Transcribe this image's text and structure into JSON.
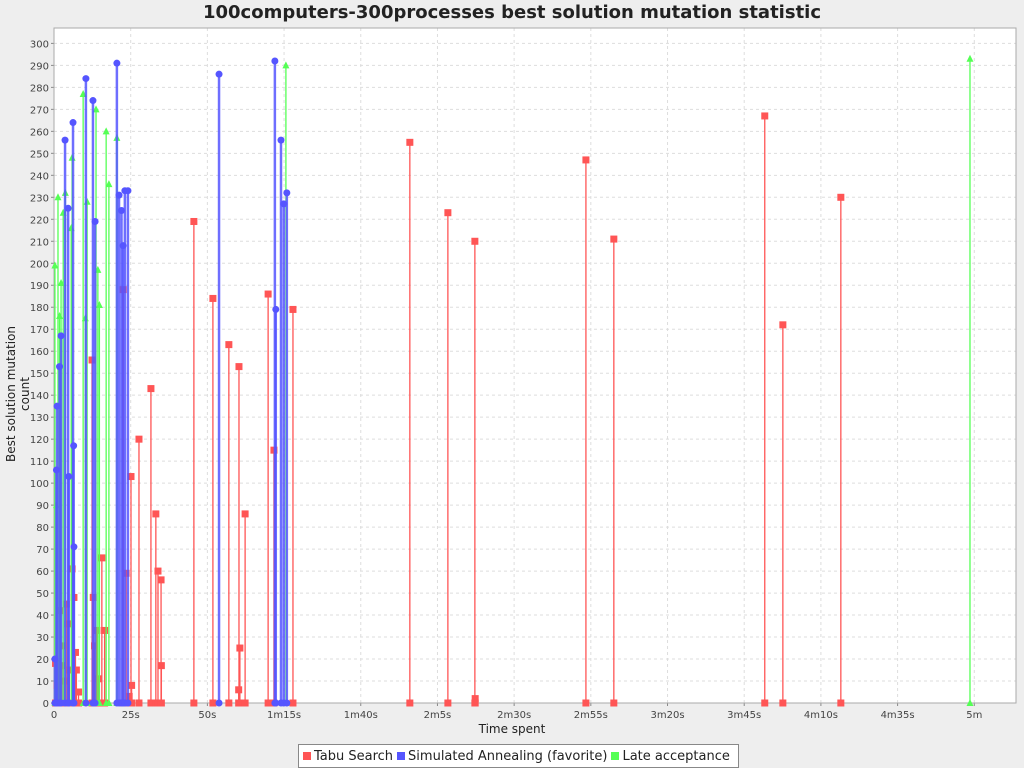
{
  "chart_data": {
    "type": "line",
    "title": "100computers-300processes best solution mutation statistic",
    "xlabel": "Time spent",
    "ylabel": "Best solution mutation count",
    "xlim": [
      0,
      313.6
    ],
    "ylim": [
      0,
      307
    ],
    "x_ticks": [
      {
        "v": 0,
        "label": "0"
      },
      {
        "v": 25,
        "label": "25s"
      },
      {
        "v": 50,
        "label": "50s"
      },
      {
        "v": 75,
        "label": "1m15s"
      },
      {
        "v": 100,
        "label": "1m40s"
      },
      {
        "v": 125,
        "label": "2m5s"
      },
      {
        "v": 150,
        "label": "2m30s"
      },
      {
        "v": 175,
        "label": "2m55s"
      },
      {
        "v": 200,
        "label": "3m20s"
      },
      {
        "v": 225,
        "label": "3m45s"
      },
      {
        "v": 250,
        "label": "4m10s"
      },
      {
        "v": 275,
        "label": "4m35s"
      },
      {
        "v": 300,
        "label": "5m"
      }
    ],
    "y_tick_step": 10,
    "grid": true,
    "legend": "bottom",
    "series": [
      {
        "name": "Tabu Search",
        "color": "#ff5555",
        "marker": "square",
        "points": [
          [
            0.5,
            18
          ],
          [
            1,
            8
          ],
          [
            1.5,
            14
          ],
          [
            2,
            42
          ],
          [
            2.5,
            17
          ],
          [
            3,
            26
          ],
          [
            3.5,
            10
          ],
          [
            4,
            45
          ],
          [
            4.5,
            36
          ],
          [
            5,
            15
          ],
          [
            5.9,
            61
          ],
          [
            6.5,
            48
          ],
          [
            7,
            23
          ],
          [
            7.3,
            15
          ],
          [
            8,
            5
          ],
          [
            12.4,
            156
          ],
          [
            12.8,
            48
          ],
          [
            13.2,
            26
          ],
          [
            14,
            33
          ],
          [
            14.5,
            11
          ],
          [
            15.6,
            66
          ],
          [
            16.5,
            33
          ],
          [
            22.5,
            188
          ],
          [
            23.5,
            59
          ],
          [
            24.5,
            3
          ],
          [
            25.1,
            103
          ],
          [
            25.3,
            8
          ],
          [
            27.7,
            120
          ],
          [
            31.6,
            143
          ],
          [
            33.2,
            86
          ],
          [
            33.9,
            60
          ],
          [
            34.9,
            56
          ],
          [
            35,
            17
          ],
          [
            45.6,
            219
          ],
          [
            51.8,
            184
          ],
          [
            57,
            163
          ],
          [
            60.3,
            153
          ],
          [
            60.6,
            25
          ],
          [
            60.2,
            6
          ],
          [
            62.3,
            86
          ],
          [
            69.8,
            186
          ],
          [
            71.7,
            115
          ],
          [
            77.9,
            179
          ],
          [
            116,
            255
          ],
          [
            128.4,
            223
          ],
          [
            137.2,
            210
          ],
          [
            137.3,
            2
          ],
          [
            173.4,
            247
          ],
          [
            182.5,
            211
          ],
          [
            231.7,
            267
          ],
          [
            237.6,
            172
          ],
          [
            256.5,
            230
          ]
        ]
      },
      {
        "name": "Simulated Annealing (favorite)",
        "color": "#5555ff",
        "marker": "circle",
        "points": [
          [
            0.3,
            20
          ],
          [
            0.8,
            106
          ],
          [
            1,
            135
          ],
          [
            1.8,
            153
          ],
          [
            2.3,
            167
          ],
          [
            3.6,
            256
          ],
          [
            4.6,
            225
          ],
          [
            4.8,
            103
          ],
          [
            6.2,
            264
          ],
          [
            6.4,
            117
          ],
          [
            6.5,
            71
          ],
          [
            10.4,
            284
          ],
          [
            12.7,
            274
          ],
          [
            13.4,
            219
          ],
          [
            20.5,
            291
          ],
          [
            21.2,
            231
          ],
          [
            22,
            224
          ],
          [
            22.5,
            208
          ],
          [
            23.1,
            233
          ],
          [
            24.1,
            233
          ],
          [
            53.8,
            286
          ],
          [
            72,
            292
          ],
          [
            72.3,
            179
          ],
          [
            74,
            256
          ],
          [
            74.9,
            227
          ],
          [
            75.9,
            232
          ]
        ]
      },
      {
        "name": "Late acceptance",
        "color": "#55ff55",
        "marker": "triangle",
        "points": [
          [
            0.3,
            199
          ],
          [
            0.8,
            90
          ],
          [
            1.3,
            230
          ],
          [
            1.8,
            176
          ],
          [
            2.3,
            191
          ],
          [
            3,
            223
          ],
          [
            3.7,
            232
          ],
          [
            5.9,
            248
          ],
          [
            5.6,
            216
          ],
          [
            9.5,
            277
          ],
          [
            10.8,
            228
          ],
          [
            10.2,
            175
          ],
          [
            13.7,
            270
          ],
          [
            14.3,
            197
          ],
          [
            14.8,
            181
          ],
          [
            17,
            260
          ],
          [
            17.9,
            236
          ],
          [
            20.5,
            257
          ],
          [
            75.6,
            290
          ],
          [
            298.6,
            293
          ]
        ]
      }
    ]
  }
}
